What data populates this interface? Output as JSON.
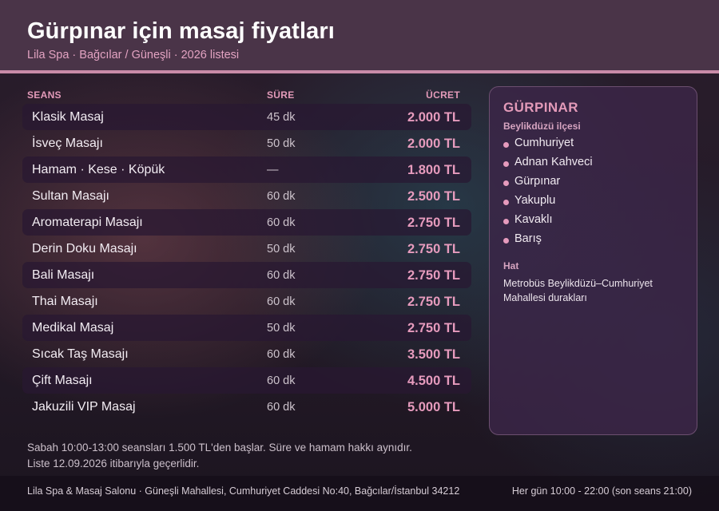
{
  "header": {
    "title": "Gürpınar için masaj fiyatları",
    "subtitle": "Lila Spa · Bağcılar / Güneşli · 2026 listesi"
  },
  "table": {
    "columns": {
      "service": "SEANS",
      "duration": "SÜRE",
      "price": "ÜCRET"
    },
    "rows": [
      {
        "name": "Klasik Masaj",
        "duration": "45 dk",
        "price": "2.000 TL"
      },
      {
        "name": "İsveç Masajı",
        "duration": "50 dk",
        "price": "2.000 TL"
      },
      {
        "name": "Hamam · Kese · Köpük",
        "duration": "—",
        "price": "1.800 TL"
      },
      {
        "name": "Sultan Masajı",
        "duration": "60 dk",
        "price": "2.500 TL"
      },
      {
        "name": "Aromaterapi Masajı",
        "duration": "60 dk",
        "price": "2.750 TL"
      },
      {
        "name": "Derin Doku Masajı",
        "duration": "50 dk",
        "price": "2.750 TL"
      },
      {
        "name": "Bali Masajı",
        "duration": "60 dk",
        "price": "2.750 TL"
      },
      {
        "name": "Thai Masajı",
        "duration": "60 dk",
        "price": "2.750 TL"
      },
      {
        "name": "Medikal Masaj",
        "duration": "50 dk",
        "price": "2.750 TL"
      },
      {
        "name": "Sıcak Taş Masajı",
        "duration": "60 dk",
        "price": "3.500 TL"
      },
      {
        "name": "Çift Masajı",
        "duration": "60 dk",
        "price": "4.500 TL"
      },
      {
        "name": "Jakuzili VIP Masaj",
        "duration": "60 dk",
        "price": "5.000 TL"
      }
    ]
  },
  "panel": {
    "title": "GÜRPINAR",
    "subtitle": "Beylikdüzü ilçesi",
    "neighborhoods": [
      "Cumhuriyet",
      "Adnan Kahveci",
      "Gürpınar",
      "Yakuplu",
      "Kavaklı",
      "Barış"
    ],
    "line_title": "Hat",
    "line_text": "Metrobüs Beylikdüzü–Cumhuriyet Mahallesi durakları"
  },
  "notes": [
    "Sabah 10:00-13:00 seansları 1.500 TL'den başlar. Süre ve hamam hakkı aynıdır.",
    "Liste 12.09.2026 itibarıyla geçerlidir."
  ],
  "footer": {
    "address": "Lila Spa & Masaj Salonu · Güneşli Mahallesi, Cumhuriyet Caddesi No:40, Bağcılar/İstanbul 34212",
    "hours": "Her gün 10:00 - 22:00 (son seans 21:00)"
  },
  "colors": {
    "accent": "#e69bbd",
    "header_bg": "#4a3448",
    "panel_bg": "#3c2648"
  }
}
